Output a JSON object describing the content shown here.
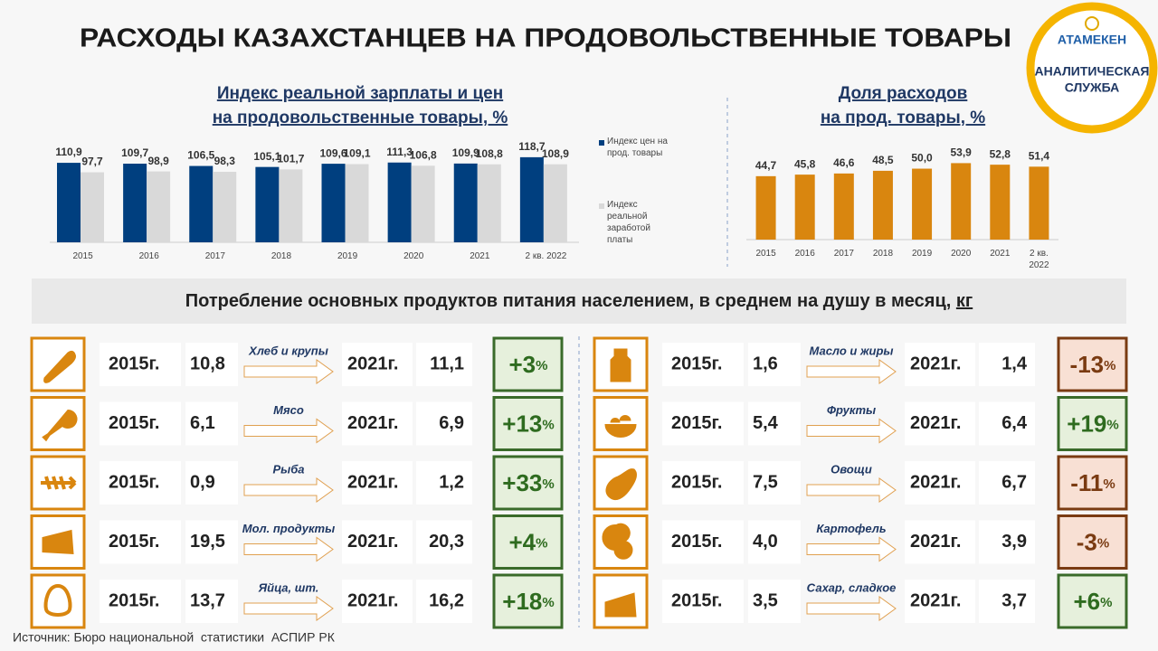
{
  "title": "РАСХОДЫ КАЗАХСТАНЦЕВ НА ПРОДОВОЛЬСТВЕННЫЕ ТОВАРЫ",
  "logo": {
    "brand": "АТАМЕКЕН",
    "caption": [
      "АНАЛИТИЧЕСКАЯ",
      "СЛУЖБА"
    ]
  },
  "chart_data": [
    {
      "type": "bar",
      "title": [
        "Индекс реальной зарплаты и цен",
        "на продовольственные товары, %"
      ],
      "categories": [
        "2015",
        "2016",
        "2017",
        "2018",
        "2019",
        "2020",
        "2021",
        "2 кв. 2022"
      ],
      "series": [
        {
          "name": "Индекс цен на прод. товары",
          "color": "#003f7f",
          "values": [
            110.9,
            109.7,
            106.5,
            105.1,
            109.6,
            111.3,
            109.9,
            118.7
          ],
          "value_labels": [
            "110,9",
            "109,7",
            "106,5",
            "105,1",
            "109,6",
            "111,3",
            "109,9",
            "118,7"
          ]
        },
        {
          "name": "Индекс реальной заработой платы",
          "color": "#d9d9d9",
          "values": [
            97.7,
            98.9,
            98.3,
            101.7,
            109.1,
            106.8,
            108.8,
            108.9
          ],
          "value_labels": [
            "97,7",
            "98,9",
            "98,3",
            "101,7",
            "109,1",
            "106,8",
            "108,8",
            "108,9"
          ]
        }
      ],
      "ylim": [
        0,
        140
      ]
    },
    {
      "type": "bar",
      "title": [
        "Доля расходов",
        "на прод. товары, %"
      ],
      "categories": [
        "2015",
        "2016",
        "2017",
        "2018",
        "2019",
        "2020",
        "2021",
        "2 кв. 2022"
      ],
      "values": [
        44.7,
        45.8,
        46.6,
        48.5,
        50.0,
        53.9,
        52.8,
        51.4
      ],
      "value_labels": [
        "44,7",
        "45,8",
        "46,6",
        "48,5",
        "50,0",
        "53,9",
        "52,8",
        "51,4"
      ],
      "color": "#d9860f",
      "ylim": [
        0,
        65
      ]
    }
  ],
  "consumption": {
    "title": "Потребление основных продуктов питания населением, в среднем на душу в месяц, ",
    "unit": "кг",
    "items": [
      {
        "name": "Хлеб и крупы",
        "from_year": "2015г.",
        "from_value": "10,8",
        "to_year": "2021г.",
        "to_value": "11,1",
        "change": "+3%"
      },
      {
        "name": "Мясо",
        "from_year": "2015г.",
        "from_value": "6,1",
        "to_year": "2021г.",
        "to_value": "6,9",
        "change": "+13%"
      },
      {
        "name": "Рыба",
        "from_year": "2015г.",
        "from_value": "0,9",
        "to_year": "2021г.",
        "to_value": "1,2",
        "change": "+33%"
      },
      {
        "name": "Мол. продукты",
        "from_year": "2015г.",
        "from_value": "19,5",
        "to_year": "2021г.",
        "to_value": "20,3",
        "change": "+4%"
      },
      {
        "name": "Яйца, шт.",
        "from_year": "2015г.",
        "from_value": "13,7",
        "to_year": "2021г.",
        "to_value": "16,2",
        "change": "+18%"
      },
      {
        "name": "Масло и жиры",
        "from_year": "2015г.",
        "from_value": "1,6",
        "to_year": "2021г.",
        "to_value": "1,4",
        "change": "-13%"
      },
      {
        "name": "Фрукты",
        "from_year": "2015г.",
        "from_value": "5,4",
        "to_year": "2021г.",
        "to_value": "6,4",
        "change": "+19%"
      },
      {
        "name": "Овощи",
        "from_year": "2015г.",
        "from_value": "7,5",
        "to_year": "2021г.",
        "to_value": "6,7",
        "change": "-11%"
      },
      {
        "name": "Картофель",
        "from_year": "2015г.",
        "from_value": "4,0",
        "to_year": "2021г.",
        "to_value": "3,9",
        "change": "-3%"
      },
      {
        "name": "Сахар, сладкое",
        "from_year": "2015г.",
        "from_value": "3,5",
        "to_year": "2021г.",
        "to_value": "3,7",
        "change": "+6%"
      }
    ]
  },
  "source": "Источник: Бюро национальной  статистики  АСПИР РК"
}
